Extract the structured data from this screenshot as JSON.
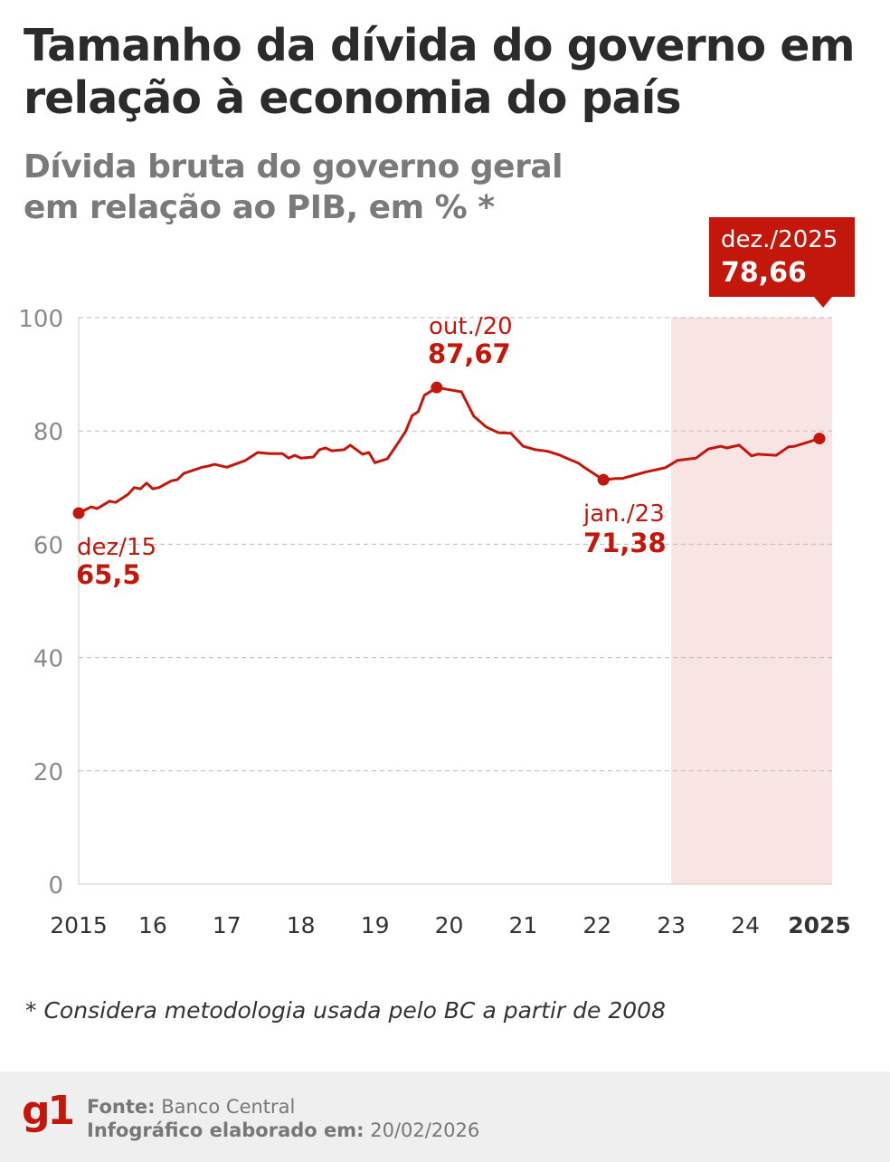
{
  "title": "Tamanho da dívida do governo em relação à economia do país",
  "subtitle_line1": "Dívida bruta do governo geral",
  "subtitle_line2": "em relação ao PIB, em % *",
  "footnote": "* Considera metodologia usada pelo BC a partir de 2008",
  "footer": {
    "logo": "g1",
    "source_label": "Fonte:",
    "source_value": "Banco Central",
    "date_label": "Infográfico elaborado em:",
    "date_value": "20/02/2026"
  },
  "colors": {
    "line": "#c4170c",
    "shade": "#f7e4e3",
    "grid": "#bbbbbb",
    "box": "#c4170c"
  },
  "chart_data": {
    "type": "line",
    "title": "Dívida bruta do governo geral em relação ao PIB, em % *",
    "xlabel": "",
    "ylabel": "",
    "ylim": [
      0,
      100
    ],
    "yticks": [
      "0",
      "20",
      "40",
      "60",
      "80",
      "100"
    ],
    "xticks": [
      {
        "date": "2015-12",
        "label": "2015",
        "bold": false
      },
      {
        "date": "2016-12",
        "label": "16",
        "bold": false
      },
      {
        "date": "2017-12",
        "label": "17",
        "bold": false
      },
      {
        "date": "2018-12",
        "label": "18",
        "bold": false
      },
      {
        "date": "2019-12",
        "label": "19",
        "bold": false
      },
      {
        "date": "2020-12",
        "label": "20",
        "bold": false
      },
      {
        "date": "2021-12",
        "label": "21",
        "bold": false
      },
      {
        "date": "2022-12",
        "label": "22",
        "bold": false
      },
      {
        "date": "2023-12",
        "label": "23",
        "bold": false
      },
      {
        "date": "2024-12",
        "label": "24",
        "bold": false
      },
      {
        "date": "2025-12",
        "label": "2025",
        "bold": true
      }
    ],
    "grid": "horizontal dashed",
    "shaded_range": [
      "2023-12",
      "2025-12"
    ],
    "series": [
      {
        "points": [
          [
            "2015-12",
            65.5
          ],
          [
            "2016-02",
            66.6
          ],
          [
            "2016-03",
            66.3
          ],
          [
            "2016-05",
            67.6
          ],
          [
            "2016-06",
            67.4
          ],
          [
            "2016-08",
            68.8
          ],
          [
            "2016-09",
            70.0
          ],
          [
            "2016-10",
            69.8
          ],
          [
            "2016-11",
            70.8
          ],
          [
            "2016-12",
            69.8
          ],
          [
            "2017-01",
            70.0
          ],
          [
            "2017-03",
            71.2
          ],
          [
            "2017-04",
            71.4
          ],
          [
            "2017-05",
            72.5
          ],
          [
            "2017-08",
            73.6
          ],
          [
            "2017-09",
            73.8
          ],
          [
            "2017-10",
            74.1
          ],
          [
            "2017-12",
            73.6
          ],
          [
            "2018-02",
            74.4
          ],
          [
            "2018-03",
            74.8
          ],
          [
            "2018-05",
            76.2
          ],
          [
            "2018-07",
            76.0
          ],
          [
            "2018-09",
            76.0
          ],
          [
            "2018-10",
            75.2
          ],
          [
            "2018-11",
            75.7
          ],
          [
            "2018-12",
            75.2
          ],
          [
            "2019-02",
            75.4
          ],
          [
            "2019-03",
            76.7
          ],
          [
            "2019-04",
            77.0
          ],
          [
            "2019-05",
            76.5
          ],
          [
            "2019-07",
            76.7
          ],
          [
            "2019-08",
            77.5
          ],
          [
            "2019-10",
            75.9
          ],
          [
            "2019-11",
            76.2
          ],
          [
            "2019-12",
            74.4
          ],
          [
            "2020-02",
            75.1
          ],
          [
            "2020-04",
            78.3
          ],
          [
            "2020-05",
            80.0
          ],
          [
            "2020-06",
            82.7
          ],
          [
            "2020-07",
            83.4
          ],
          [
            "2020-08",
            86.3
          ],
          [
            "2020-10",
            87.67
          ],
          [
            "2021-02",
            86.9
          ],
          [
            "2021-04",
            82.6
          ],
          [
            "2021-06",
            80.7
          ],
          [
            "2021-08",
            79.7
          ],
          [
            "2021-10",
            79.6
          ],
          [
            "2021-12",
            77.3
          ],
          [
            "2022-02",
            76.7
          ],
          [
            "2022-04",
            76.4
          ],
          [
            "2022-06",
            75.7
          ],
          [
            "2022-07",
            75.2
          ],
          [
            "2022-09",
            74.3
          ],
          [
            "2022-10",
            73.5
          ],
          [
            "2023-01",
            71.38
          ],
          [
            "2023-03",
            71.6
          ],
          [
            "2023-04",
            71.6
          ],
          [
            "2023-06",
            72.2
          ],
          [
            "2023-08",
            72.8
          ],
          [
            "2023-11",
            73.5
          ],
          [
            "2024-01",
            74.8
          ],
          [
            "2024-04",
            75.2
          ],
          [
            "2024-06",
            76.8
          ],
          [
            "2024-08",
            77.3
          ],
          [
            "2024-09",
            77.0
          ],
          [
            "2024-11",
            77.5
          ],
          [
            "2025-01",
            75.6
          ],
          [
            "2025-02",
            75.9
          ],
          [
            "2025-05",
            75.7
          ],
          [
            "2025-07",
            77.2
          ],
          [
            "2025-08",
            77.3
          ],
          [
            "2025-12",
            78.66
          ]
        ]
      }
    ],
    "annotations": [
      {
        "date": "2015-12",
        "value": 65.5,
        "label": "dez/15",
        "value_label": "65,5"
      },
      {
        "date": "2020-10",
        "value": 87.67,
        "label": "out./20",
        "value_label": "87,67"
      },
      {
        "date": "2023-01",
        "value": 71.38,
        "label": "jan./23",
        "value_label": "71,38"
      },
      {
        "date": "2025-12",
        "value": 78.66,
        "label": "dez./2025",
        "value_label": "78,66"
      }
    ]
  }
}
